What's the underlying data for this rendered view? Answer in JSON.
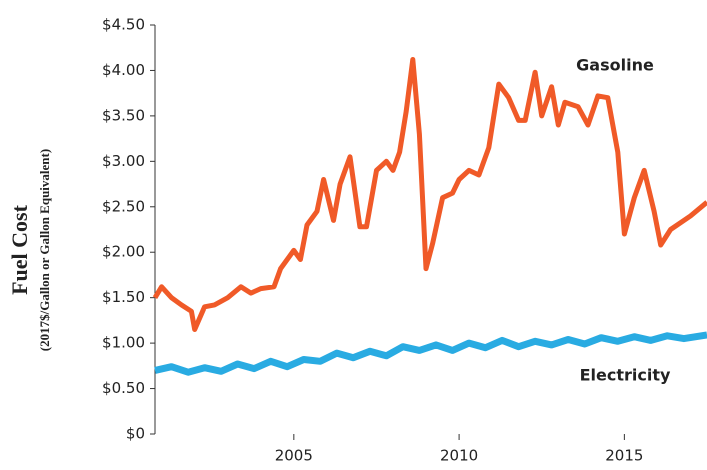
{
  "chart_data": {
    "type": "line",
    "y_label": "Fuel Cost",
    "y_sublabel": "(2017$/Gallon or Gallon Equivalent)",
    "xlim": [
      2000.8,
      2017.5
    ],
    "xticks": [
      2005,
      2010,
      2015
    ],
    "ylim": [
      0,
      4.5
    ],
    "yticks": [
      {
        "value": 0,
        "label": "$0"
      },
      {
        "value": 0.5,
        "label": "$0.50"
      },
      {
        "value": 1,
        "label": "$1.00"
      },
      {
        "value": 1.5,
        "label": "$1.50"
      },
      {
        "value": 2,
        "label": "$2.00"
      },
      {
        "value": 2.5,
        "label": "$2.50"
      },
      {
        "value": 3,
        "label": "$3.00"
      },
      {
        "value": 3.5,
        "label": "$3.50"
      },
      {
        "value": 4,
        "label": "$4.00"
      },
      {
        "value": 4.5,
        "label": "$4.50"
      }
    ],
    "grid": false,
    "series": [
      {
        "name": "Gasoline",
        "color": "#f05a28",
        "x": [
          2000.8,
          2001.0,
          2001.3,
          2001.6,
          2001.9,
          2002.0,
          2002.3,
          2002.6,
          2003.0,
          2003.4,
          2003.7,
          2004.0,
          2004.4,
          2004.6,
          2005.0,
          2005.2,
          2005.4,
          2005.7,
          2005.9,
          2006.2,
          2006.4,
          2006.7,
          2007.0,
          2007.2,
          2007.5,
          2007.8,
          2008.0,
          2008.2,
          2008.4,
          2008.6,
          2008.8,
          2009.0,
          2009.2,
          2009.5,
          2009.8,
          2010.0,
          2010.3,
          2010.6,
          2010.9,
          2011.2,
          2011.5,
          2011.8,
          2012.0,
          2012.3,
          2012.5,
          2012.8,
          2013.0,
          2013.2,
          2013.6,
          2013.9,
          2014.2,
          2014.5,
          2014.8,
          2015.0,
          2015.3,
          2015.6,
          2015.9,
          2016.1,
          2016.4,
          2016.8,
          2017.0,
          2017.5
        ],
        "values": [
          1.5,
          1.62,
          1.5,
          1.42,
          1.35,
          1.15,
          1.4,
          1.42,
          1.5,
          1.62,
          1.55,
          1.6,
          1.62,
          1.82,
          2.02,
          1.92,
          2.3,
          2.45,
          2.8,
          2.35,
          2.75,
          3.05,
          2.28,
          2.28,
          2.9,
          3.0,
          2.9,
          3.1,
          3.55,
          4.12,
          3.3,
          1.82,
          2.1,
          2.6,
          2.65,
          2.8,
          2.9,
          2.85,
          3.15,
          3.85,
          3.7,
          3.45,
          3.45,
          3.98,
          3.5,
          3.82,
          3.4,
          3.65,
          3.6,
          3.4,
          3.72,
          3.7,
          3.1,
          2.2,
          2.6,
          2.9,
          2.45,
          2.08,
          2.25,
          2.35,
          2.4,
          2.55
        ]
      },
      {
        "name": "Electricity",
        "color": "#29abe2",
        "x": [
          2000.8,
          2001.3,
          2001.8,
          2002.3,
          2002.8,
          2003.3,
          2003.8,
          2004.3,
          2004.8,
          2005.3,
          2005.8,
          2006.3,
          2006.8,
          2007.3,
          2007.8,
          2008.3,
          2008.8,
          2009.3,
          2009.8,
          2010.3,
          2010.8,
          2011.3,
          2011.8,
          2012.3,
          2012.8,
          2013.3,
          2013.8,
          2014.3,
          2014.8,
          2015.3,
          2015.8,
          2016.3,
          2016.8,
          2017.5
        ],
        "values": [
          0.7,
          0.74,
          0.68,
          0.73,
          0.69,
          0.77,
          0.72,
          0.8,
          0.74,
          0.82,
          0.8,
          0.89,
          0.84,
          0.91,
          0.86,
          0.96,
          0.92,
          0.98,
          0.92,
          1.0,
          0.95,
          1.03,
          0.96,
          1.02,
          0.98,
          1.04,
          0.99,
          1.06,
          1.02,
          1.07,
          1.03,
          1.08,
          1.05,
          1.09
        ]
      }
    ]
  }
}
